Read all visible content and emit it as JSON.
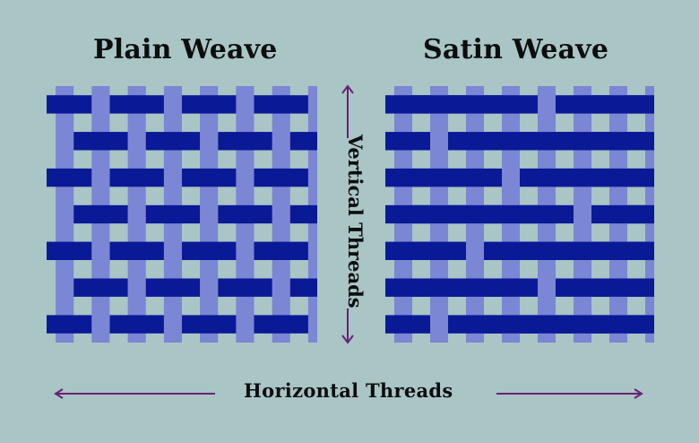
{
  "plain": {
    "title": "Plain Weave"
  },
  "satin": {
    "title": "Satin Weave"
  },
  "labels": {
    "vertical": "Vertical Threads",
    "horizontal": "Horizontal Threads"
  },
  "colors": {
    "background": "#a9c5c5",
    "warp_thread": "#7b86d4",
    "weft_thread": "#0a1996",
    "arrow": "#6b1f7a",
    "text": "#0d0d0d"
  }
}
